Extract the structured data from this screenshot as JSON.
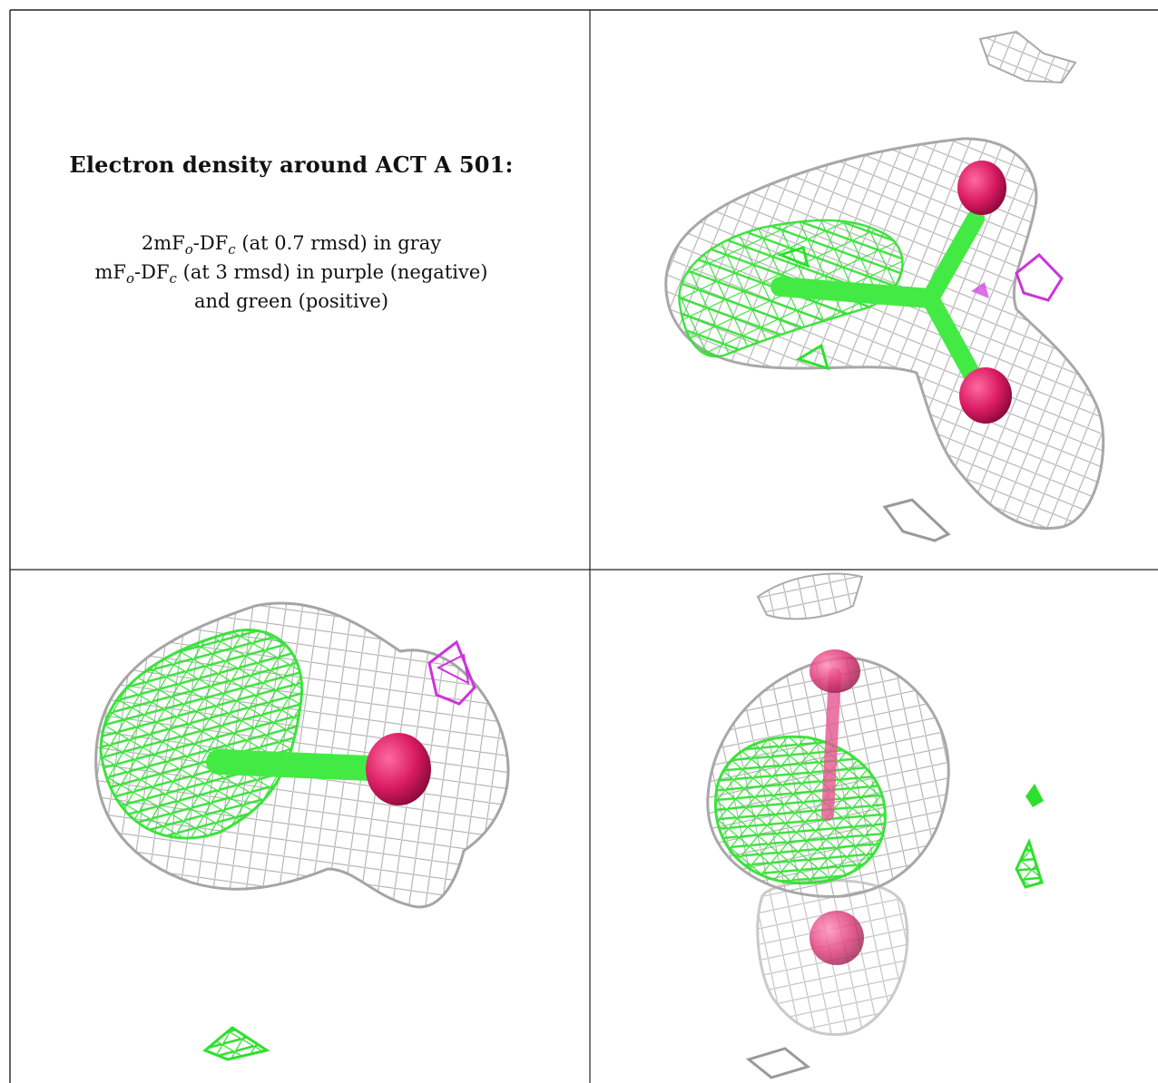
{
  "caption": {
    "title": "Electron density around ACT A 501:",
    "map1_main": "2mF",
    "map1_sub_o": "o",
    "map1_dash": "-DF",
    "map1_sub_c": "c",
    "map1_rest": " (at 0.7 rmsd) in gray",
    "map2_main": "mF",
    "map2_sub_o": "o",
    "map2_dash": "-DF",
    "map2_sub_c": "c",
    "map2_rest": " (at 3 rmsd) in purple (negative)",
    "map2_line3": "and green (positive)"
  },
  "colors": {
    "mesh_gray": "#b8b8b8",
    "negative_purple": "#cc33dd",
    "positive_green": "#33ee33",
    "oxygen_pink": "#e0206e",
    "carbon_green": "#40e040"
  }
}
